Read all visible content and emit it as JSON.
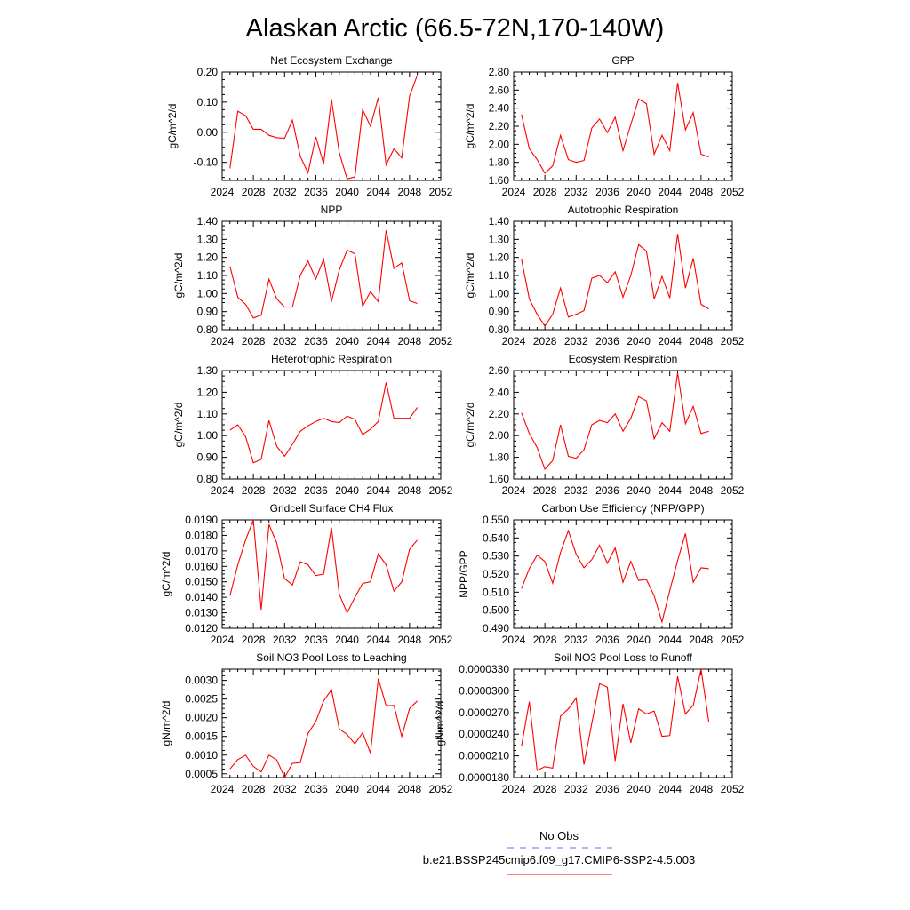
{
  "figure": {
    "title": "Alaskan Arctic (66.5-72N,170-140W)"
  },
  "chart_data": [
    {
      "type": "line",
      "title": "Net Ecosystem Exchange",
      "ylabel": "gC/m^2/d",
      "xlabel": "",
      "xlim": [
        2024,
        2052
      ],
      "x_ticks": [
        "2024",
        "2028",
        "2032",
        "2036",
        "2040",
        "2044",
        "2048",
        "2052"
      ],
      "ylim": [
        -0.16,
        0.2
      ],
      "y_ticks": [
        "-0.10",
        "0.00",
        "0.10",
        "0.20"
      ],
      "x": [
        2025,
        2026,
        2027,
        2028,
        2029,
        2030,
        2031,
        2032,
        2033,
        2034,
        2035,
        2036,
        2037,
        2038,
        2039,
        2040,
        2041,
        2042,
        2043,
        2044,
        2045,
        2046,
        2047,
        2048,
        2049
      ],
      "series": [
        {
          "name": "b.e21.BSSP245cmip6.f09_g17.CMIP6-SSP2-4.5.003",
          "color": "#ff0000",
          "values": [
            -0.12,
            0.07,
            0.055,
            0.01,
            0.01,
            -0.01,
            -0.018,
            -0.02,
            0.04,
            -0.08,
            -0.135,
            -0.015,
            -0.105,
            0.11,
            -0.068,
            -0.155,
            -0.148,
            0.075,
            0.02,
            0.115,
            -0.108,
            -0.055,
            -0.085,
            0.12,
            0.19
          ]
        }
      ]
    },
    {
      "type": "line",
      "title": "GPP",
      "ylabel": "gC/m^2/d",
      "xlabel": "",
      "xlim": [
        2024,
        2052
      ],
      "x_ticks": [
        "2024",
        "2028",
        "2032",
        "2036",
        "2040",
        "2044",
        "2048",
        "2052"
      ],
      "ylim": [
        1.6,
        2.8
      ],
      "y_ticks": [
        "1.60",
        "1.80",
        "2.00",
        "2.20",
        "2.40",
        "2.60",
        "2.80"
      ],
      "x": [
        2025,
        2026,
        2027,
        2028,
        2029,
        2030,
        2031,
        2032,
        2033,
        2034,
        2035,
        2036,
        2037,
        2038,
        2039,
        2040,
        2041,
        2042,
        2043,
        2044,
        2045,
        2046,
        2047,
        2048,
        2049
      ],
      "series": [
        {
          "name": "b.e21.BSSP245cmip6.f09_g17.CMIP6-SSP2-4.5.003",
          "color": "#ff0000",
          "values": [
            2.33,
            1.95,
            1.83,
            1.68,
            1.76,
            2.1,
            1.83,
            1.8,
            1.82,
            2.18,
            2.28,
            2.13,
            2.3,
            1.93,
            2.22,
            2.5,
            2.45,
            1.89,
            2.1,
            1.93,
            2.68,
            2.16,
            2.35,
            1.89,
            1.86
          ]
        }
      ]
    },
    {
      "type": "line",
      "title": "NPP",
      "ylabel": "gC/m^2/d",
      "xlabel": "",
      "xlim": [
        2024,
        2052
      ],
      "x_ticks": [
        "2024",
        "2028",
        "2032",
        "2036",
        "2040",
        "2044",
        "2048",
        "2052"
      ],
      "ylim": [
        0.8,
        1.4
      ],
      "y_ticks": [
        "0.80",
        "0.90",
        "1.00",
        "1.10",
        "1.20",
        "1.30",
        "1.40"
      ],
      "x": [
        2025,
        2026,
        2027,
        2028,
        2029,
        2030,
        2031,
        2032,
        2033,
        2034,
        2035,
        2036,
        2037,
        2038,
        2039,
        2040,
        2041,
        2042,
        2043,
        2044,
        2045,
        2046,
        2047,
        2048,
        2049
      ],
      "series": [
        {
          "name": "b.e21.BSSP245cmip6.f09_g17.CMIP6-SSP2-4.5.003",
          "color": "#ff0000",
          "values": [
            1.15,
            0.98,
            0.94,
            0.865,
            0.88,
            1.08,
            0.97,
            0.925,
            0.925,
            1.1,
            1.18,
            1.08,
            1.19,
            0.955,
            1.13,
            1.24,
            1.22,
            0.93,
            1.01,
            0.955,
            1.35,
            1.14,
            1.17,
            0.96,
            0.945
          ]
        }
      ]
    },
    {
      "type": "line",
      "title": "Autotrophic Respiration",
      "ylabel": "gC/m^2/d",
      "xlabel": "",
      "xlim": [
        2024,
        2052
      ],
      "x_ticks": [
        "2024",
        "2028",
        "2032",
        "2036",
        "2040",
        "2044",
        "2048",
        "2052"
      ],
      "ylim": [
        0.8,
        1.4
      ],
      "y_ticks": [
        "0.80",
        "0.90",
        "1.00",
        "1.10",
        "1.20",
        "1.30",
        "1.40"
      ],
      "x": [
        2025,
        2026,
        2027,
        2028,
        2029,
        2030,
        2031,
        2032,
        2033,
        2034,
        2035,
        2036,
        2037,
        2038,
        2039,
        2040,
        2041,
        2042,
        2043,
        2044,
        2045,
        2046,
        2047,
        2048,
        2049
      ],
      "series": [
        {
          "name": "b.e21.BSSP245cmip6.f09_g17.CMIP6-SSP2-4.5.003",
          "color": "#ff0000",
          "values": [
            1.19,
            0.97,
            0.885,
            0.82,
            0.885,
            1.03,
            0.87,
            0.885,
            0.905,
            1.085,
            1.1,
            1.06,
            1.12,
            0.98,
            1.1,
            1.27,
            1.235,
            0.97,
            1.095,
            0.975,
            1.33,
            1.03,
            1.195,
            0.94,
            0.915
          ]
        }
      ]
    },
    {
      "type": "line",
      "title": "Heterotrophic Respiration",
      "ylabel": "gC/m^2/d",
      "xlabel": "",
      "xlim": [
        2024,
        2052
      ],
      "x_ticks": [
        "2024",
        "2028",
        "2032",
        "2036",
        "2040",
        "2044",
        "2048",
        "2052"
      ],
      "ylim": [
        0.8,
        1.3
      ],
      "y_ticks": [
        "0.80",
        "0.90",
        "1.00",
        "1.10",
        "1.20",
        "1.30"
      ],
      "x": [
        2025,
        2026,
        2027,
        2028,
        2029,
        2030,
        2031,
        2032,
        2033,
        2034,
        2035,
        2036,
        2037,
        2038,
        2039,
        2040,
        2041,
        2042,
        2043,
        2044,
        2045,
        2046,
        2047,
        2048,
        2049
      ],
      "series": [
        {
          "name": "b.e21.BSSP245cmip6.f09_g17.CMIP6-SSP2-4.5.003",
          "color": "#ff0000",
          "values": [
            1.025,
            1.05,
            0.995,
            0.875,
            0.89,
            1.07,
            0.95,
            0.905,
            0.96,
            1.02,
            1.045,
            1.065,
            1.08,
            1.065,
            1.06,
            1.09,
            1.075,
            1.005,
            1.03,
            1.065,
            1.245,
            1.08,
            1.08,
            1.08,
            1.13
          ]
        }
      ]
    },
    {
      "type": "line",
      "title": "Ecosystem Respiration",
      "ylabel": "gC/m^2/d",
      "xlabel": "",
      "xlim": [
        2024,
        2052
      ],
      "x_ticks": [
        "2024",
        "2028",
        "2032",
        "2036",
        "2040",
        "2044",
        "2048",
        "2052"
      ],
      "ylim": [
        1.6,
        2.6
      ],
      "y_ticks": [
        "1.60",
        "1.80",
        "2.00",
        "2.20",
        "2.40",
        "2.60"
      ],
      "x": [
        2025,
        2026,
        2027,
        2028,
        2029,
        2030,
        2031,
        2032,
        2033,
        2034,
        2035,
        2036,
        2037,
        2038,
        2039,
        2040,
        2041,
        2042,
        2043,
        2044,
        2045,
        2046,
        2047,
        2048,
        2049
      ],
      "series": [
        {
          "name": "b.e21.BSSP245cmip6.f09_g17.CMIP6-SSP2-4.5.003",
          "color": "#ff0000",
          "values": [
            2.21,
            2.02,
            1.89,
            1.69,
            1.77,
            2.1,
            1.81,
            1.79,
            1.87,
            2.1,
            2.14,
            2.12,
            2.2,
            2.04,
            2.16,
            2.36,
            2.32,
            1.97,
            2.12,
            2.04,
            2.58,
            2.11,
            2.27,
            2.02,
            2.04
          ]
        }
      ]
    },
    {
      "type": "line",
      "title": "Gridcell Surface CH4 Flux",
      "ylabel": "gC/m^2/d",
      "xlabel": "",
      "xlim": [
        2024,
        2052
      ],
      "x_ticks": [
        "2024",
        "2028",
        "2032",
        "2036",
        "2040",
        "2044",
        "2048",
        "2052"
      ],
      "ylim": [
        0.012,
        0.019
      ],
      "y_ticks": [
        "0.0120",
        "0.0130",
        "0.0140",
        "0.0150",
        "0.0160",
        "0.0170",
        "0.0180",
        "0.0190"
      ],
      "x": [
        2025,
        2026,
        2027,
        2028,
        2029,
        2030,
        2031,
        2032,
        2033,
        2034,
        2035,
        2036,
        2037,
        2038,
        2039,
        2040,
        2041,
        2042,
        2043,
        2044,
        2045,
        2046,
        2047,
        2048,
        2049
      ],
      "series": [
        {
          "name": "b.e21.BSSP245cmip6.f09_g17.CMIP6-SSP2-4.5.003",
          "color": "#ff0000",
          "values": [
            0.0141,
            0.0161,
            0.0177,
            0.019,
            0.0132,
            0.0187,
            0.0175,
            0.0152,
            0.0148,
            0.0163,
            0.0161,
            0.0154,
            0.0155,
            0.0185,
            0.0142,
            0.013,
            0.014,
            0.0149,
            0.015,
            0.0168,
            0.0161,
            0.0144,
            0.015,
            0.0171,
            0.0177
          ]
        }
      ]
    },
    {
      "type": "line",
      "title": "Carbon Use Efficiency (NPP/GPP)",
      "ylabel": "NPP/GPP",
      "xlabel": "",
      "xlim": [
        2024,
        2052
      ],
      "x_ticks": [
        "2024",
        "2028",
        "2032",
        "2036",
        "2040",
        "2044",
        "2048",
        "2052"
      ],
      "ylim": [
        0.49,
        0.55
      ],
      "y_ticks": [
        "0.490",
        "0.500",
        "0.510",
        "0.520",
        "0.530",
        "0.540",
        "0.550"
      ],
      "x": [
        2025,
        2026,
        2027,
        2028,
        2029,
        2030,
        2031,
        2032,
        2033,
        2034,
        2035,
        2036,
        2037,
        2038,
        2039,
        2040,
        2041,
        2042,
        2043,
        2044,
        2045,
        2046,
        2047,
        2048,
        2049
      ],
      "series": [
        {
          "name": "b.e21.BSSP245cmip6.f09_g17.CMIP6-SSP2-4.5.003",
          "color": "#ff0000",
          "values": [
            0.512,
            0.523,
            0.5305,
            0.527,
            0.515,
            0.532,
            0.544,
            0.531,
            0.5235,
            0.528,
            0.536,
            0.526,
            0.5345,
            0.5155,
            0.527,
            0.5165,
            0.517,
            0.508,
            0.4935,
            0.511,
            0.5275,
            0.5425,
            0.5155,
            0.5235,
            0.523
          ]
        }
      ]
    },
    {
      "type": "line",
      "title": "Soil NO3 Pool Loss to Leaching",
      "ylabel": "gN/m^2/d",
      "xlabel": "",
      "xlim": [
        2024,
        2052
      ],
      "x_ticks": [
        "2024",
        "2028",
        "2032",
        "2036",
        "2040",
        "2044",
        "2048",
        "2052"
      ],
      "ylim": [
        0.0004,
        0.0033
      ],
      "y_ticks": [
        "0.0005",
        "0.0010",
        "0.0015",
        "0.0020",
        "0.0025",
        "0.0030"
      ],
      "x": [
        2025,
        2026,
        2027,
        2028,
        2029,
        2030,
        2031,
        2032,
        2033,
        2034,
        2035,
        2036,
        2037,
        2038,
        2039,
        2040,
        2041,
        2042,
        2043,
        2044,
        2045,
        2046,
        2047,
        2048,
        2049
      ],
      "series": [
        {
          "name": "b.e21.BSSP245cmip6.f09_g17.CMIP6-SSP2-4.5.003",
          "color": "#ff0000",
          "values": [
            0.00063,
            0.00088,
            0.001,
            0.0007,
            0.00055,
            0.001,
            0.00087,
            0.0004,
            0.00078,
            0.0008,
            0.00158,
            0.0019,
            0.00245,
            0.00275,
            0.0017,
            0.00155,
            0.0013,
            0.0016,
            0.00105,
            0.00305,
            0.00232,
            0.00233,
            0.0015,
            0.00225,
            0.00245
          ]
        }
      ]
    },
    {
      "type": "line",
      "title": "Soil NO3 Pool Loss to Runoff",
      "ylabel": "gN/m^2/d",
      "xlabel": "",
      "xlim": [
        2024,
        2052
      ],
      "x_ticks": [
        "2024",
        "2028",
        "2032",
        "2036",
        "2040",
        "2044",
        "2048",
        "2052"
      ],
      "ylim": [
        1.8e-05,
        3.3e-05
      ],
      "y_ticks": [
        "0.0000180",
        "0.0000210",
        "0.0000240",
        "0.0000270",
        "0.0000300",
        "0.0000330"
      ],
      "x": [
        2025,
        2026,
        2027,
        2028,
        2029,
        2030,
        2031,
        2032,
        2033,
        2034,
        2035,
        2036,
        2037,
        2038,
        2039,
        2040,
        2041,
        2042,
        2043,
        2044,
        2045,
        2046,
        2047,
        2048,
        2049
      ],
      "series": [
        {
          "name": "b.e21.BSSP245cmip6.f09_g17.CMIP6-SSP2-4.5.003",
          "color": "#ff0000",
          "values": [
            2.23e-05,
            2.85e-05,
            1.9e-05,
            1.95e-05,
            1.93e-05,
            2.65e-05,
            2.75e-05,
            2.9e-05,
            1.98e-05,
            2.55e-05,
            3.1e-05,
            3.05e-05,
            2.03e-05,
            2.82e-05,
            2.28e-05,
            2.75e-05,
            2.68e-05,
            2.72e-05,
            2.37e-05,
            2.38e-05,
            3.2e-05,
            2.68e-05,
            2.8e-05,
            3.3e-05,
            2.57e-05
          ]
        }
      ]
    }
  ],
  "legend": {
    "placement": "bottom-center",
    "items": [
      {
        "label": "No Obs",
        "color": "#6a6aff",
        "style": "dashed"
      },
      {
        "label": "b.e21.BSSP245cmip6.f09_g17.CMIP6-SSP2-4.5.003",
        "color": "#ff0000",
        "style": "solid"
      }
    ]
  }
}
